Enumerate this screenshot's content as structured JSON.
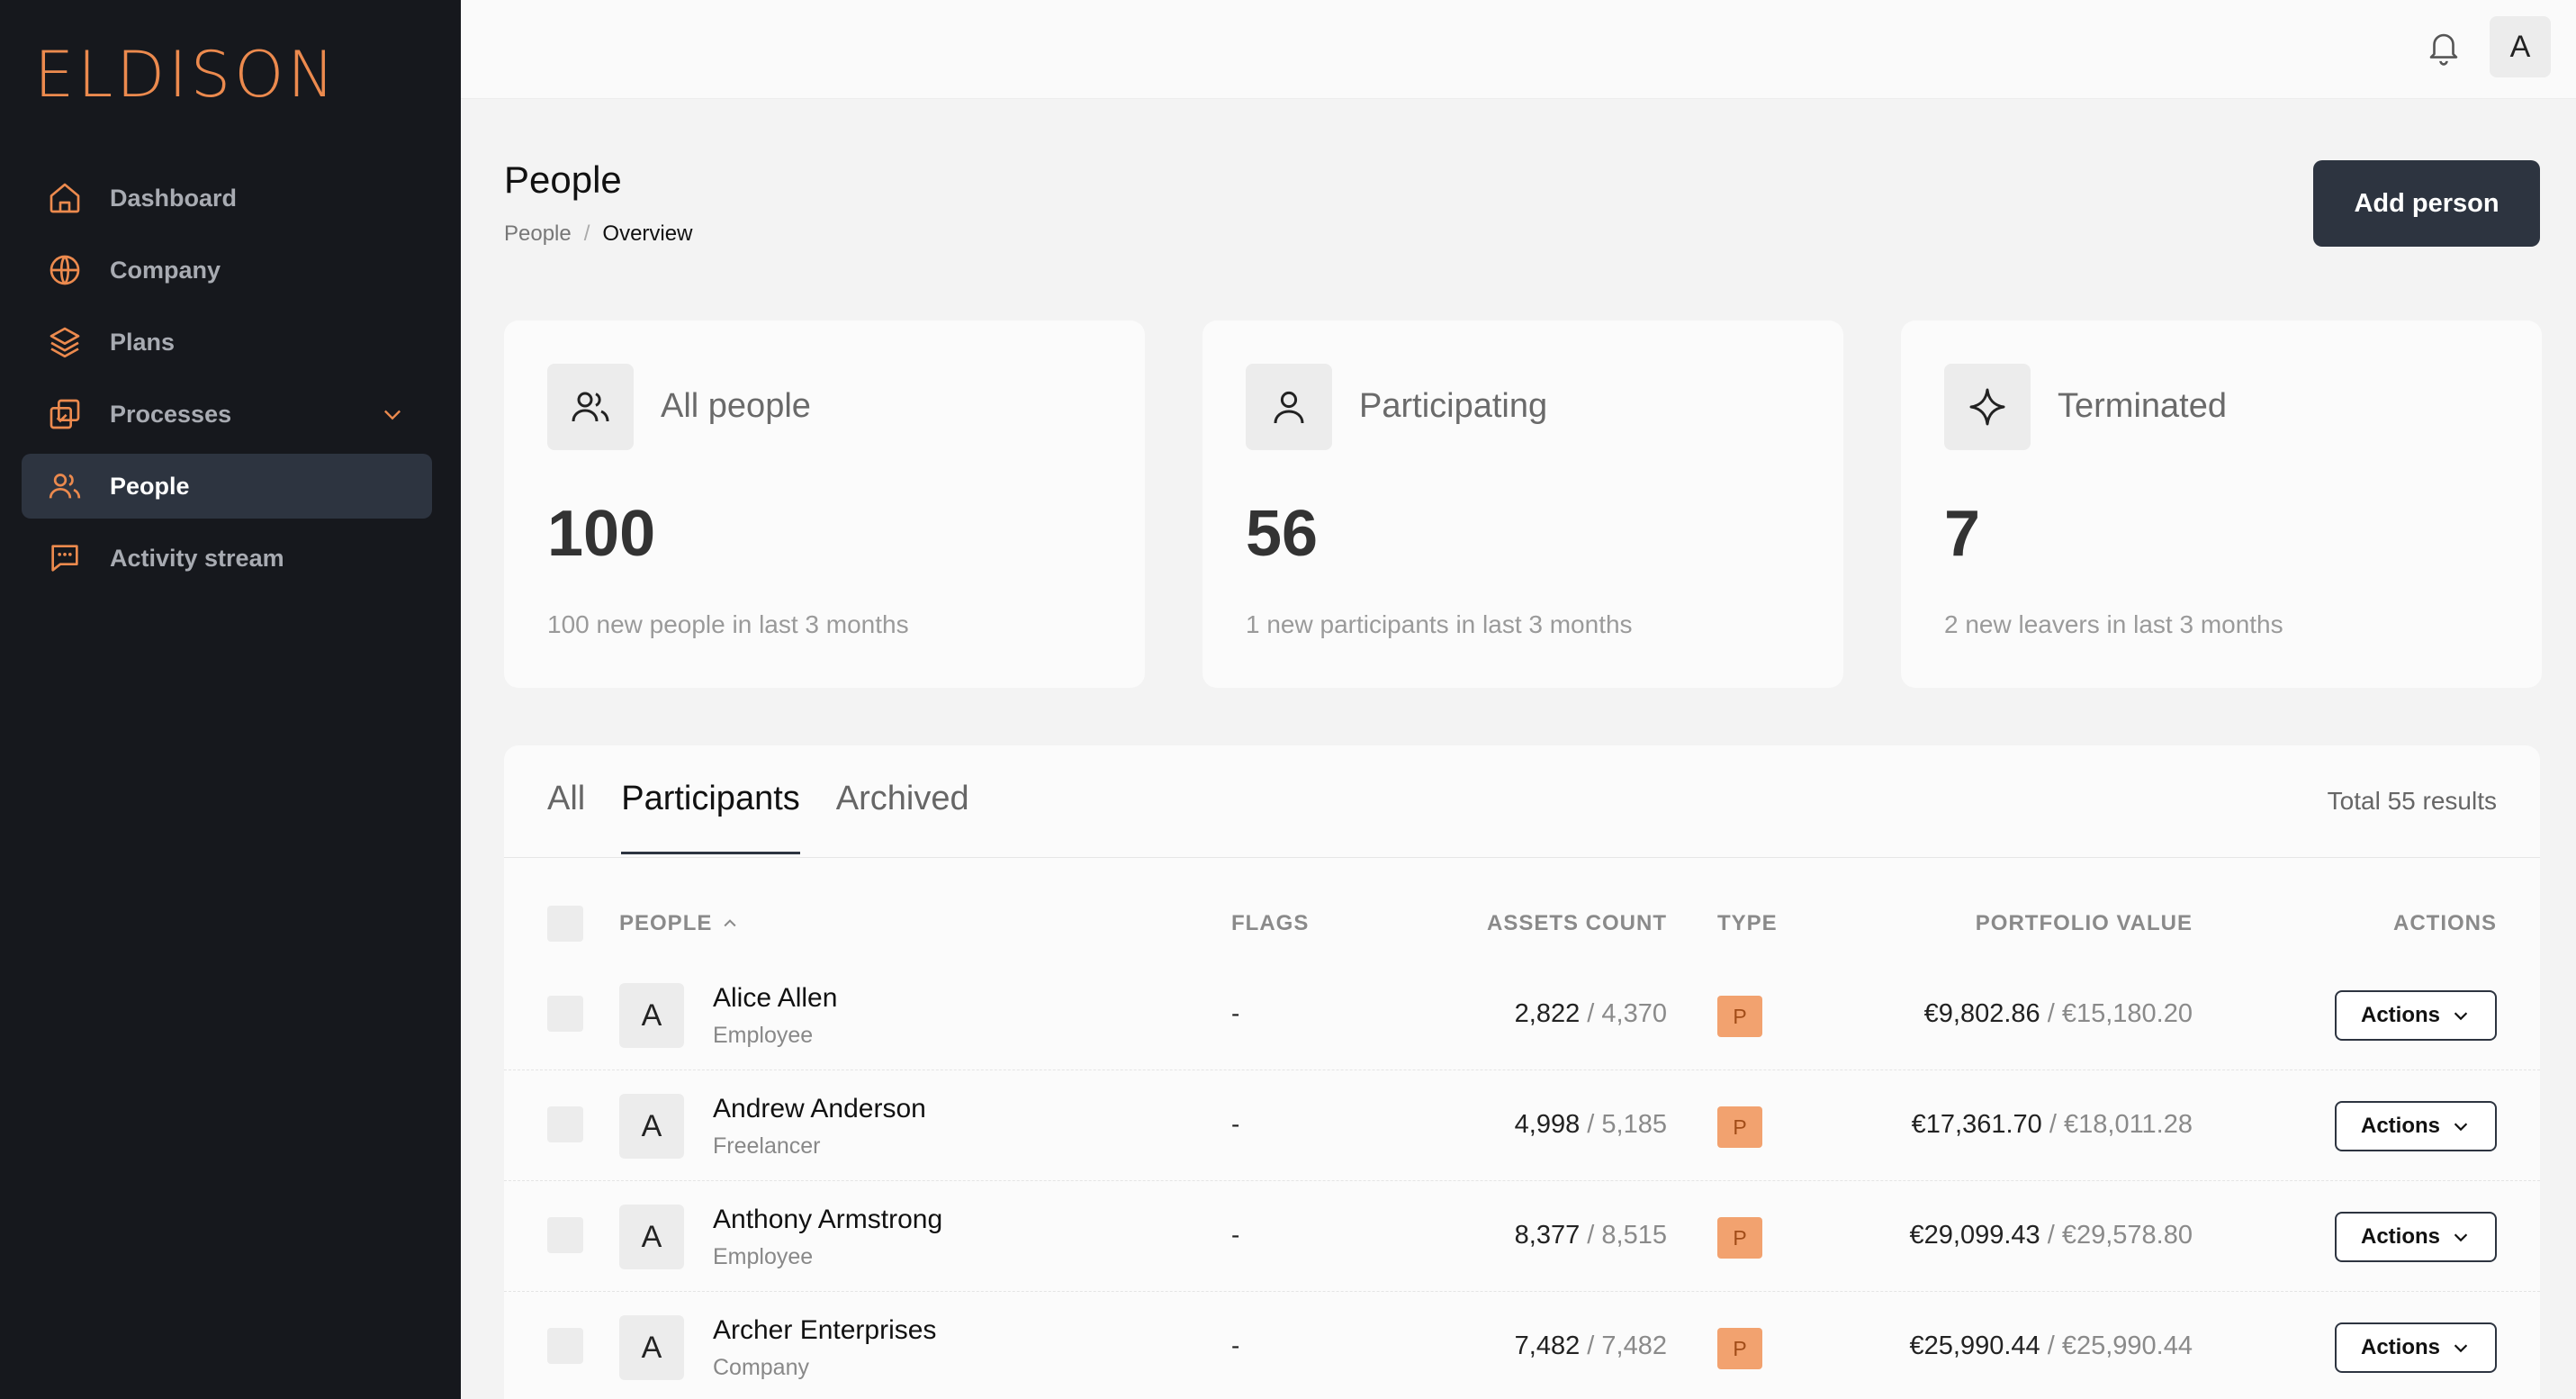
{
  "brand": {
    "logo_text": "ELDISON",
    "accent": "#ec8a4e"
  },
  "sidebar": {
    "items": [
      {
        "label": "Dashboard",
        "icon": "home-icon"
      },
      {
        "label": "Company",
        "icon": "globe-icon"
      },
      {
        "label": "Plans",
        "icon": "layers-icon"
      },
      {
        "label": "Processes",
        "icon": "processes-icon",
        "has_submenu": true
      },
      {
        "label": "People",
        "icon": "users-icon",
        "active": true
      },
      {
        "label": "Activity stream",
        "icon": "chat-icon"
      }
    ]
  },
  "topbar": {
    "avatar_letter": "A"
  },
  "page": {
    "title": "People",
    "breadcrumb": {
      "root": "People",
      "separator": "/",
      "current": "Overview"
    },
    "add_button": "Add person"
  },
  "stats": [
    {
      "title": "All people",
      "value": "100",
      "sub": "100 new people in last 3 months",
      "icon": "users-icon"
    },
    {
      "title": "Participating",
      "value": "56",
      "sub": "1 new participants in last 3 months",
      "icon": "user-icon"
    },
    {
      "title": "Terminated",
      "value": "7",
      "sub": "2 new leavers in last 3 months",
      "icon": "sparkle-icon"
    }
  ],
  "table": {
    "tabs": [
      "All",
      "Participants",
      "Archived"
    ],
    "active_tab": "Participants",
    "total": "Total 55 results",
    "headers": {
      "people": "PEOPLE",
      "flags": "FLAGS",
      "assets": "ASSETS COUNT",
      "type": "TYPE",
      "portfolio": "PORTFOLIO VALUE",
      "actions": "ACTIONS"
    },
    "rows": [
      {
        "initial": "A",
        "name": "Alice Allen",
        "role": "Employee",
        "flags": "-",
        "assets": "2,822",
        "assets_total": "4,370",
        "type": "P",
        "value": "€9,802.86",
        "value_total": "€15,180.20",
        "action": "Actions"
      },
      {
        "initial": "A",
        "name": "Andrew Anderson",
        "role": "Freelancer",
        "flags": "-",
        "assets": "4,998",
        "assets_total": "5,185",
        "type": "P",
        "value": "€17,361.70",
        "value_total": "€18,011.28",
        "action": "Actions"
      },
      {
        "initial": "A",
        "name": "Anthony Armstrong",
        "role": "Employee",
        "flags": "-",
        "assets": "8,377",
        "assets_total": "8,515",
        "type": "P",
        "value": "€29,099.43",
        "value_total": "€29,578.80",
        "action": "Actions"
      },
      {
        "initial": "A",
        "name": "Archer Enterprises",
        "role": "Company",
        "flags": "-",
        "assets": "7,482",
        "assets_total": "7,482",
        "type": "P",
        "value": "€25,990.44",
        "value_total": "€25,990.44",
        "action": "Actions"
      }
    ]
  }
}
